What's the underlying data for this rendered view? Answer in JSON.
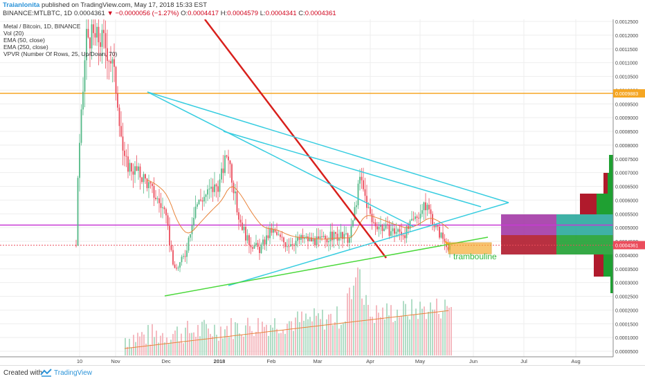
{
  "header": {
    "author": "Traianlonita",
    "published": "published on TradingView.com, May 17, 2018 15:33 EST",
    "symbol": "BINANCE:MTLBTC, 1D",
    "last": "0.0004361",
    "change": "−0.0000056 (−1.27%)",
    "o_label": "O:",
    "o": "0.0004417",
    "h_label": "H:",
    "h": "0.0004579",
    "l_label": "L:",
    "l": "0.0004341",
    "c_label": "C:",
    "c": "0.0004361"
  },
  "legend": {
    "title": "Metal / Bitcoin, 1D, BINANCE",
    "vol": "Vol (20)",
    "ema50": "EMA (50, close)",
    "ema250": "EMA (250, close)",
    "vpvr": "VPVR (Number Of Rows, 25, Up/Down, 70)"
  },
  "annotation": "trambouline",
  "footer": {
    "created": "Created with",
    "brand": "TradingView"
  },
  "colors": {
    "up": "#53b987",
    "down": "#eb4d5c",
    "trendline_cyan": "#37cde0",
    "trendline_red": "#d8201c",
    "support_green": "#4ad83a",
    "resistance_orange": "#f5a623",
    "level_magenta": "#c738d6",
    "ema": "#e8833a"
  },
  "chart_data": {
    "type": "candlestick",
    "x_ticks": [
      "10",
      "Nov",
      "Dec",
      "2018",
      "Feb",
      "Mar",
      "Apr",
      "May",
      "Jun",
      "Jul",
      "Aug"
    ],
    "y_ticks": [
      "0.0012500",
      "0.0012000",
      "0.0011500",
      "0.0011000",
      "0.0010500",
      "0.0010000",
      "0.0009500",
      "0.0009000",
      "0.0008500",
      "0.0008000",
      "0.0007500",
      "0.0007000",
      "0.0006500",
      "0.0006000",
      "0.0005500",
      "0.0005000",
      "0.0004500",
      "0.0004000",
      "0.0003500",
      "0.0003000",
      "0.0002500",
      "0.0002000",
      "0.0001500",
      "0.0001000",
      "0.0000500"
    ],
    "ylim": [
      2e-05,
      0.00126
    ],
    "price_labels": [
      {
        "value": "0.0009883",
        "color": "#f5a623"
      },
      {
        "value": "0.0004361",
        "color": "#eb4d5c"
      }
    ],
    "horizontal_levels": [
      {
        "price": 0.0009883,
        "color": "#f5a623"
      },
      {
        "price": 0.000509,
        "color": "#c738d6"
      },
      {
        "price": 0.000436,
        "color": "#eb4d5c",
        "style": "dotted"
      }
    ],
    "price_path": [
      {
        "date": "2017-10-10",
        "price": 0.00068
      },
      {
        "date": "2017-10-15",
        "price": 0.0012
      },
      {
        "date": "2017-10-25",
        "price": 0.00118
      },
      {
        "date": "2017-10-30",
        "price": 0.0011
      },
      {
        "date": "2017-11-02",
        "price": 0.00098
      },
      {
        "date": "2017-11-06",
        "price": 0.00074
      },
      {
        "date": "2017-11-12",
        "price": 0.00071
      },
      {
        "date": "2017-11-18",
        "price": 0.00068
      },
      {
        "date": "2017-11-24",
        "price": 0.00062
      },
      {
        "date": "2017-11-30",
        "price": 0.00056
      },
      {
        "date": "2017-12-06",
        "price": 0.00034
      },
      {
        "date": "2017-12-12",
        "price": 0.0004
      },
      {
        "date": "2017-12-18",
        "price": 0.00058
      },
      {
        "date": "2017-12-24",
        "price": 0.00062
      },
      {
        "date": "2018-01-01",
        "price": 0.00066
      },
      {
        "date": "2018-01-06",
        "price": 0.00078
      },
      {
        "date": "2018-01-12",
        "price": 0.00055
      },
      {
        "date": "2018-01-18",
        "price": 0.00045
      },
      {
        "date": "2018-01-25",
        "price": 0.00042
      },
      {
        "date": "2018-02-01",
        "price": 0.00049
      },
      {
        "date": "2018-02-10",
        "price": 0.00044
      },
      {
        "date": "2018-02-20",
        "price": 0.00046
      },
      {
        "date": "2018-03-01",
        "price": 0.00045
      },
      {
        "date": "2018-03-10",
        "price": 0.00047
      },
      {
        "date": "2018-03-20",
        "price": 0.00046
      },
      {
        "date": "2018-03-26",
        "price": 0.00068
      },
      {
        "date": "2018-04-02",
        "price": 0.00052
      },
      {
        "date": "2018-04-12",
        "price": 0.00049
      },
      {
        "date": "2018-04-22",
        "price": 0.00048
      },
      {
        "date": "2018-04-30",
        "price": 0.00055
      },
      {
        "date": "2018-05-05",
        "price": 0.00058
      },
      {
        "date": "2018-05-10",
        "price": 0.0005
      },
      {
        "date": "2018-05-17",
        "price": 0.000436
      }
    ],
    "volume_scale": "0.0001500–0.0002000 peak region in lower pane (thousands)"
  }
}
